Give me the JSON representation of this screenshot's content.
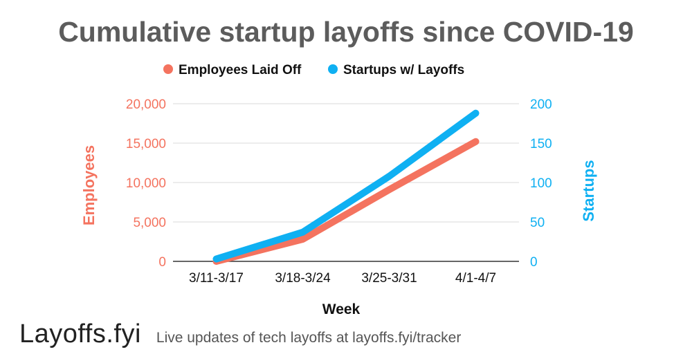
{
  "chart_data": {
    "type": "line",
    "title": "Cumulative startup layoffs since COVID-19",
    "xlabel": "Week",
    "categories": [
      "3/11-3/17",
      "3/18-3/24",
      "3/25-3/31",
      "4/1-4/7"
    ],
    "series": [
      {
        "name": "Employees Laid Off",
        "axis": "left",
        "color": "#f4735f",
        "values": [
          0,
          2800,
          9100,
          15200
        ]
      },
      {
        "name": "Startups w/ Layoffs",
        "axis": "right",
        "color": "#0fb0f2",
        "values": [
          3,
          37,
          108,
          188
        ]
      }
    ],
    "yleft": {
      "label": "Employees",
      "lim": [
        0,
        20000
      ],
      "ticks": [
        0,
        5000,
        10000,
        15000,
        20000
      ],
      "tick_labels": [
        "0",
        "5,000",
        "10,000",
        "15,000",
        "20,000"
      ],
      "color": "#f4735f"
    },
    "yright": {
      "label": "Startups",
      "lim": [
        0,
        200
      ],
      "ticks": [
        0,
        50,
        100,
        150,
        200
      ],
      "tick_labels": [
        "0",
        "50",
        "100",
        "150",
        "200"
      ],
      "color": "#0fb0f2"
    },
    "grid": true,
    "legend": "top-center"
  },
  "footer": {
    "brand": "Layoffs.fyi",
    "tagline": "Live updates of tech layoffs at layoffs.fyi/tracker"
  },
  "colors": {
    "title": "#5c5c5c",
    "grid": "#d8d8d8",
    "axis_text": "#111111"
  }
}
